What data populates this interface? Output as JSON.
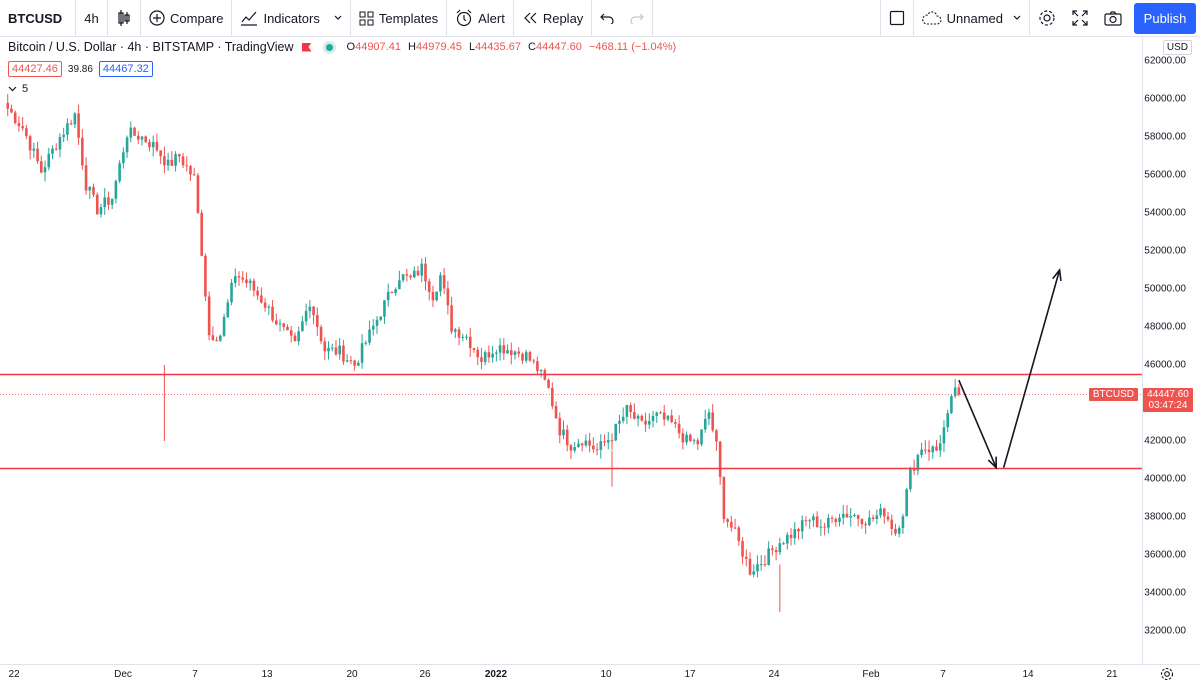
{
  "toolbar": {
    "symbol": "BTCUSD",
    "interval": "4h",
    "compare_label": "Compare",
    "indicators_label": "Indicators",
    "templates_label": "Templates",
    "alert_label": "Alert",
    "replay_label": "Replay",
    "layout_name": "Unnamed",
    "publish_label": "Publish",
    "icons": [
      "bar-style-icon",
      "plus-circle-icon",
      "indicators-icon",
      "templates-icon",
      "alert-clock-icon",
      "replay-icon",
      "undo-icon",
      "redo-icon",
      "layout-square-icon",
      "cloud-icon",
      "gear-icon",
      "fullscreen-icon",
      "camera-icon"
    ]
  },
  "legend": {
    "title": "Bitcoin / U.S. Dollar · 4h · BITSTAMP · TradingView",
    "ohlc": [
      {
        "label": "O",
        "value": "44907.41"
      },
      {
        "label": "H",
        "value": "44979.45"
      },
      {
        "label": "L",
        "value": "44435.67"
      },
      {
        "label": "C",
        "value": "44447.60"
      }
    ],
    "change": "−468.11 (−1.04%)",
    "bid": "44427.46",
    "spread": "39.86",
    "ask": "44467.32",
    "indicator_count": "5"
  },
  "price_axis": {
    "currency": "USD",
    "ticks": [
      "62000.00",
      "60000.00",
      "58000.00",
      "56000.00",
      "54000.00",
      "52000.00",
      "50000.00",
      "48000.00",
      "46000.00",
      "44000.00",
      "42000.00",
      "40000.00",
      "38000.00",
      "36000.00",
      "34000.00",
      "32000.00"
    ],
    "symbol_tag": "BTCUSD",
    "last_price": "44447.60",
    "countdown": "03:47:24"
  },
  "time_axis": {
    "labels": [
      {
        "text": "22",
        "bold": false
      },
      {
        "text": "Dec",
        "bold": false
      },
      {
        "text": "7",
        "bold": false
      },
      {
        "text": "13",
        "bold": false
      },
      {
        "text": "20",
        "bold": false
      },
      {
        "text": "26",
        "bold": false
      },
      {
        "text": "2022",
        "bold": true
      },
      {
        "text": "10",
        "bold": false
      },
      {
        "text": "17",
        "bold": false
      },
      {
        "text": "24",
        "bold": false
      },
      {
        "text": "Feb",
        "bold": false
      },
      {
        "text": "7",
        "bold": false
      },
      {
        "text": "14",
        "bold": false
      },
      {
        "text": "21",
        "bold": false
      }
    ]
  },
  "colors": {
    "up": "#26a69a",
    "down": "#ef5350",
    "horizontal_line": "#f23645",
    "accent": "#2962ff"
  },
  "chart_data": {
    "type": "candlestick",
    "symbol": "BTCUSD",
    "timeframe": "4h",
    "ylim": [
      31000,
      63000
    ],
    "horizontal_lines": [
      45500,
      40550
    ],
    "last_price": 44447.6,
    "path_points": [
      [
        1,
        59500
      ],
      [
        5,
        58500
      ],
      [
        10,
        56200
      ],
      [
        15,
        58000
      ],
      [
        19,
        59200
      ],
      [
        22,
        55500
      ],
      [
        25,
        54200
      ],
      [
        29,
        54800
      ],
      [
        33,
        58200
      ],
      [
        37,
        58000
      ],
      [
        41,
        57400
      ],
      [
        44,
        56500
      ],
      [
        47,
        57000
      ],
      [
        51,
        55800
      ],
      [
        53,
        52000
      ],
      [
        55,
        47600
      ],
      [
        58,
        47600
      ],
      [
        62,
        50800
      ],
      [
        66,
        50200
      ],
      [
        70,
        49200
      ],
      [
        74,
        48000
      ],
      [
        78,
        47000
      ],
      [
        82,
        49400
      ],
      [
        86,
        46800
      ],
      [
        90,
        46700
      ],
      [
        94,
        46000
      ],
      [
        98,
        47600
      ],
      [
        102,
        49200
      ],
      [
        106,
        50700
      ],
      [
        109,
        50500
      ],
      [
        112,
        51100
      ],
      [
        115,
        49700
      ],
      [
        117,
        50700
      ],
      [
        120,
        48000
      ],
      [
        124,
        47500
      ],
      [
        128,
        46300
      ],
      [
        132,
        47000
      ],
      [
        136,
        46800
      ],
      [
        140,
        46500
      ],
      [
        143,
        45800
      ],
      [
        146,
        44700
      ],
      [
        149,
        42600
      ],
      [
        152,
        41800
      ],
      [
        155,
        42100
      ],
      [
        159,
        41500
      ],
      [
        163,
        42300
      ],
      [
        167,
        43600
      ],
      [
        171,
        42800
      ],
      [
        175,
        43300
      ],
      [
        179,
        42900
      ],
      [
        183,
        42000
      ],
      [
        186,
        41900
      ],
      [
        189,
        43500
      ],
      [
        191,
        41700
      ],
      [
        193,
        38200
      ],
      [
        196,
        37100
      ],
      [
        200,
        35200
      ],
      [
        204,
        35800
      ],
      [
        208,
        36700
      ],
      [
        212,
        37200
      ],
      [
        216,
        37900
      ],
      [
        220,
        37500
      ],
      [
        224,
        38200
      ],
      [
        228,
        38100
      ],
      [
        232,
        37800
      ],
      [
        236,
        38300
      ],
      [
        239,
        37200
      ],
      [
        241,
        38300
      ],
      [
        243,
        40300
      ],
      [
        246,
        41700
      ],
      [
        250,
        41500
      ],
      [
        253,
        43200
      ],
      [
        255,
        44900
      ],
      [
        256,
        44447.6
      ]
    ],
    "arrows": [
      {
        "from": [
          256,
          45200
        ],
        "to": [
          266,
          40600
        ]
      },
      {
        "from": [
          268,
          40600
        ],
        "to": [
          283,
          51000
        ]
      }
    ]
  }
}
